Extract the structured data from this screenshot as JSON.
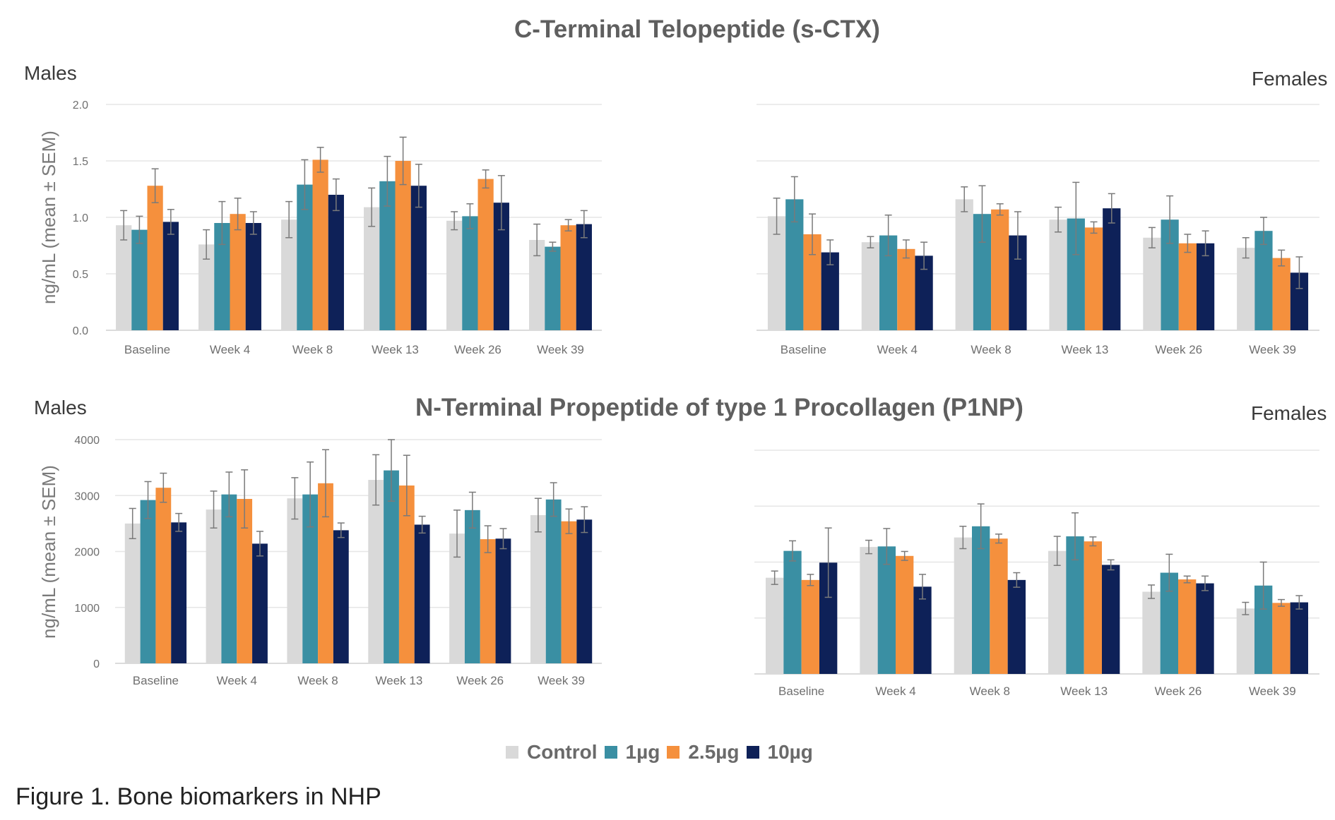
{
  "titles": {
    "top": "C-Terminal Telopeptide (s-CTX)",
    "bottom": "N-Terminal Propeptide of type 1 Procollagen (P1NP)"
  },
  "labels": {
    "males": "Males",
    "females": "Females"
  },
  "caption": "Figure 1. Bone biomarkers in NHP",
  "legend": [
    {
      "name": "Control",
      "color": "#d9d9d9"
    },
    {
      "name": "1µg",
      "color": "#3a8fa3"
    },
    {
      "name": "2.5µg",
      "color": "#f5903d"
    },
    {
      "name": "10µg",
      "color": "#0e2158"
    }
  ],
  "chart_data": [
    {
      "type": "bar",
      "panel": "Males",
      "ylabel": "ng/mL (mean ± SEM)",
      "ylim": [
        0,
        2.0
      ],
      "yticks": [
        "0.0",
        "0.5",
        "1.0",
        "1.5",
        "2.0"
      ],
      "categories": [
        "Baseline",
        "Week 4",
        "Week 8",
        "Week 13",
        "Week 26",
        "Week 39"
      ],
      "grid": true,
      "series": [
        {
          "name": "Control",
          "values": [
            0.93,
            0.76,
            0.98,
            1.09,
            0.97,
            0.8
          ],
          "errors": [
            0.13,
            0.13,
            0.16,
            0.17,
            0.08,
            0.14
          ]
        },
        {
          "name": "1µg",
          "values": [
            0.89,
            0.95,
            1.29,
            1.32,
            1.01,
            0.74
          ],
          "errors": [
            0.12,
            0.19,
            0.22,
            0.22,
            0.11,
            0.04
          ]
        },
        {
          "name": "2.5µg",
          "values": [
            1.28,
            1.03,
            1.51,
            1.5,
            1.34,
            0.93
          ],
          "errors": [
            0.15,
            0.14,
            0.11,
            0.21,
            0.08,
            0.05
          ]
        },
        {
          "name": "10µg",
          "values": [
            0.96,
            0.95,
            1.2,
            1.28,
            1.13,
            0.94
          ],
          "errors": [
            0.11,
            0.1,
            0.14,
            0.19,
            0.24,
            0.12
          ]
        }
      ]
    },
    {
      "type": "bar",
      "panel": "Females",
      "ylim": [
        0,
        2.0
      ],
      "categories": [
        "Baseline",
        "Week 4",
        "Week 8",
        "Week 13",
        "Week 26",
        "Week 39"
      ],
      "grid": true,
      "series": [
        {
          "name": "Control",
          "values": [
            1.01,
            0.78,
            1.16,
            0.98,
            0.82,
            0.73
          ],
          "errors": [
            0.16,
            0.05,
            0.11,
            0.11,
            0.09,
            0.09
          ]
        },
        {
          "name": "1µg",
          "values": [
            1.16,
            0.84,
            1.03,
            0.99,
            0.98,
            0.88
          ],
          "errors": [
            0.2,
            0.18,
            0.25,
            0.32,
            0.21,
            0.12
          ]
        },
        {
          "name": "2.5µg",
          "values": [
            0.85,
            0.72,
            1.07,
            0.91,
            0.77,
            0.64
          ],
          "errors": [
            0.18,
            0.08,
            0.05,
            0.05,
            0.08,
            0.07
          ]
        },
        {
          "name": "10µg",
          "values": [
            0.69,
            0.66,
            0.84,
            1.08,
            0.77,
            0.51
          ],
          "errors": [
            0.11,
            0.12,
            0.21,
            0.13,
            0.11,
            0.14
          ]
        }
      ]
    },
    {
      "type": "bar",
      "panel": "Males",
      "ylabel": "ng/mL (mean ± SEM)",
      "ylim": [
        0,
        4000
      ],
      "yticks": [
        "0",
        "1000",
        "2000",
        "3000",
        "4000"
      ],
      "categories": [
        "Baseline",
        "Week 4",
        "Week 8",
        "Week 13",
        "Week 26",
        "Week 39"
      ],
      "grid": true,
      "series": [
        {
          "name": "Control",
          "values": [
            2500,
            2750,
            2950,
            3280,
            2320,
            2650
          ],
          "errors": [
            270,
            330,
            370,
            450,
            420,
            300
          ]
        },
        {
          "name": "1µg",
          "values": [
            2920,
            3020,
            3020,
            3450,
            2740,
            2930
          ],
          "errors": [
            330,
            400,
            580,
            550,
            320,
            300
          ]
        },
        {
          "name": "2.5µg",
          "values": [
            3140,
            2940,
            3220,
            3180,
            2220,
            2540
          ],
          "errors": [
            260,
            520,
            600,
            540,
            240,
            220
          ]
        },
        {
          "name": "10µg",
          "values": [
            2520,
            2140,
            2380,
            2480,
            2230,
            2570
          ],
          "errors": [
            160,
            220,
            130,
            150,
            180,
            230
          ]
        }
      ]
    },
    {
      "type": "bar",
      "panel": "Females",
      "ylim": [
        0,
        4000
      ],
      "categories": [
        "Baseline",
        "Week 4",
        "Week 8",
        "Week 13",
        "Week 26",
        "Week 39"
      ],
      "grid": true,
      "series": [
        {
          "name": "Control",
          "values": [
            1720,
            2270,
            2440,
            2200,
            1470,
            1170
          ],
          "errors": [
            120,
            120,
            200,
            260,
            120,
            110
          ]
        },
        {
          "name": "1µg",
          "values": [
            2200,
            2280,
            2640,
            2460,
            1810,
            1580
          ],
          "errors": [
            180,
            320,
            400,
            420,
            330,
            420
          ]
        },
        {
          "name": "2.5µg",
          "values": [
            1680,
            2110,
            2420,
            2370,
            1690,
            1270
          ],
          "errors": [
            100,
            80,
            80,
            80,
            60,
            60
          ]
        },
        {
          "name": "10µg",
          "values": [
            1990,
            1560,
            1680,
            1950,
            1620,
            1280
          ],
          "errors": [
            620,
            220,
            130,
            90,
            130,
            120
          ]
        }
      ]
    }
  ]
}
